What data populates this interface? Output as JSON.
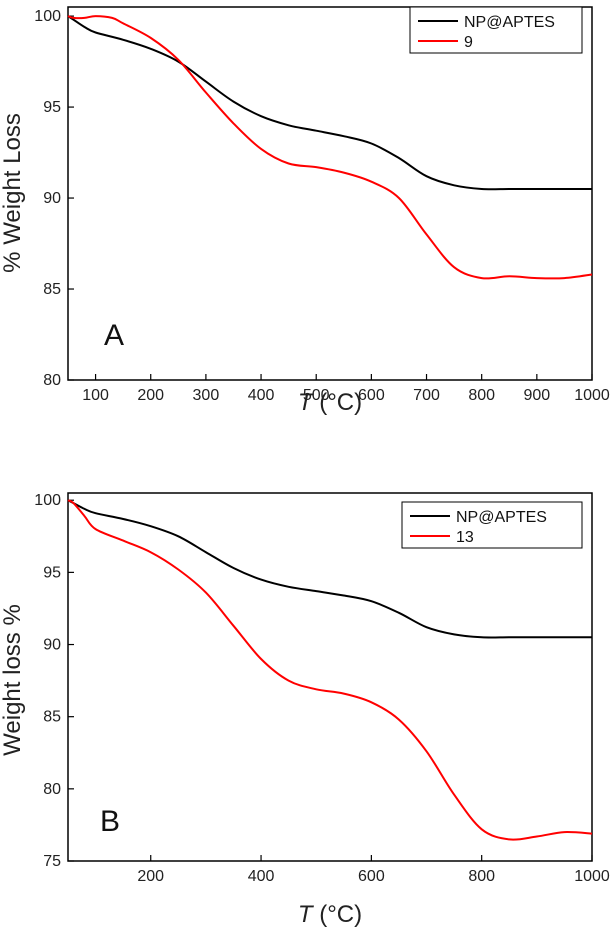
{
  "chart_data": [
    {
      "type": "line",
      "panel_label": "A",
      "title": "",
      "xlabel_italic": "T",
      "xlabel_rest": " (°C)",
      "ylabel": "% Weight Loss",
      "xlim": [
        50,
        1000
      ],
      "ylim": [
        80,
        100.5
      ],
      "xticks": [
        100,
        200,
        300,
        400,
        500,
        600,
        700,
        800,
        900,
        1000
      ],
      "yticks": [
        80,
        85,
        90,
        95,
        100
      ],
      "legend_position": "top-right",
      "series": [
        {
          "name": "NP@APTES",
          "color": "#000000",
          "x": [
            50,
            60,
            80,
            100,
            150,
            200,
            250,
            300,
            350,
            400,
            450,
            500,
            550,
            600,
            650,
            700,
            750,
            800,
            850,
            900,
            950,
            1000
          ],
          "y": [
            100.0,
            99.8,
            99.4,
            99.1,
            98.7,
            98.2,
            97.5,
            96.4,
            95.3,
            94.5,
            94.0,
            93.7,
            93.4,
            93.0,
            92.2,
            91.2,
            90.7,
            90.5,
            90.5,
            90.5,
            90.5,
            90.5
          ]
        },
        {
          "name": "9",
          "color": "#ff0000",
          "x": [
            50,
            60,
            80,
            100,
            130,
            150,
            200,
            250,
            300,
            350,
            400,
            450,
            500,
            550,
            600,
            650,
            700,
            750,
            800,
            850,
            900,
            950,
            1000
          ],
          "y": [
            100.0,
            99.9,
            99.9,
            100.0,
            99.9,
            99.6,
            98.8,
            97.6,
            95.8,
            94.1,
            92.7,
            91.9,
            91.7,
            91.4,
            90.9,
            90.0,
            88.0,
            86.2,
            85.6,
            85.7,
            85.6,
            85.6,
            85.8
          ]
        }
      ]
    },
    {
      "type": "line",
      "panel_label": "B",
      "title": "",
      "xlabel_italic": "T",
      "xlabel_rest": " (°C)",
      "ylabel": "Weight loss %",
      "xlim": [
        50,
        1000
      ],
      "ylim": [
        75,
        100.5
      ],
      "xticks": [
        200,
        400,
        600,
        800,
        1000
      ],
      "yticks": [
        75,
        80,
        85,
        90,
        95,
        100
      ],
      "legend_position": "top-right",
      "series": [
        {
          "name": "NP@APTES",
          "color": "#000000",
          "x": [
            50,
            60,
            80,
            100,
            150,
            200,
            250,
            300,
            350,
            400,
            450,
            500,
            550,
            600,
            650,
            700,
            750,
            800,
            850,
            900,
            950,
            1000
          ],
          "y": [
            100.0,
            99.8,
            99.4,
            99.1,
            98.7,
            98.2,
            97.5,
            96.4,
            95.3,
            94.5,
            94.0,
            93.7,
            93.4,
            93.0,
            92.2,
            91.2,
            90.7,
            90.5,
            90.5,
            90.5,
            90.5,
            90.5
          ]
        },
        {
          "name": "13",
          "color": "#ff0000",
          "x": [
            50,
            60,
            80,
            100,
            150,
            200,
            250,
            300,
            350,
            400,
            450,
            500,
            550,
            600,
            650,
            700,
            750,
            800,
            850,
            900,
            950,
            1000
          ],
          "y": [
            100.0,
            99.8,
            98.9,
            98.0,
            97.2,
            96.4,
            95.2,
            93.6,
            91.3,
            89.0,
            87.5,
            86.9,
            86.6,
            86.0,
            84.8,
            82.6,
            79.6,
            77.2,
            76.5,
            76.7,
            77.0,
            76.9
          ]
        }
      ]
    }
  ]
}
